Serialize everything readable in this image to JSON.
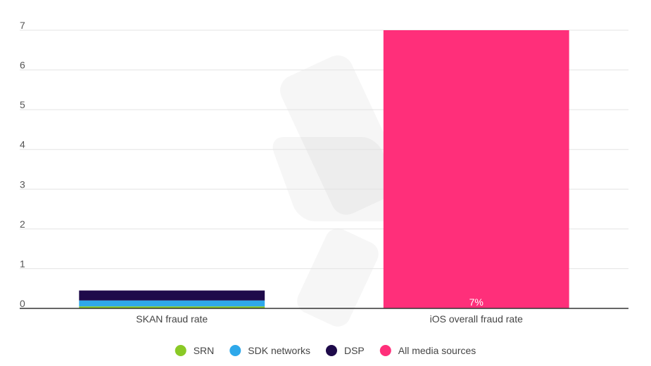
{
  "chart_data": {
    "type": "bar",
    "stacked": true,
    "categories": [
      "SKAN fraud rate",
      "iOS overall fraud rate"
    ],
    "series": [
      {
        "name": "SRN",
        "color": "#8ac926",
        "values": [
          0.05,
          0
        ]
      },
      {
        "name": "SDK networks",
        "color": "#2ea8ea",
        "values": [
          0.15,
          0
        ]
      },
      {
        "name": "DSP",
        "color": "#1e0a4a",
        "values": [
          0.25,
          0
        ]
      },
      {
        "name": "All media sources",
        "color": "#ff2f7a",
        "values": [
          0,
          7
        ]
      }
    ],
    "data_labels": [
      "",
      "7%"
    ],
    "ylim": [
      0,
      7
    ],
    "yticks": [
      "0",
      "1",
      "2",
      "3",
      "4",
      "5",
      "6",
      "7"
    ],
    "grid": true,
    "legend_position": "bottom"
  }
}
